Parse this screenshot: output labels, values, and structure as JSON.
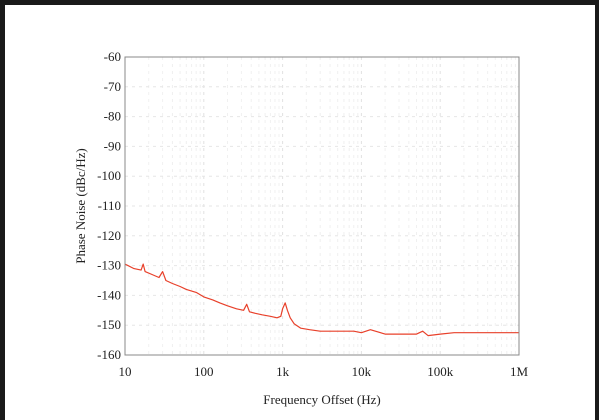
{
  "chart_data": {
    "type": "line",
    "title": "",
    "xlabel": "Frequency Offset (Hz)",
    "ylabel": "Phase Noise (dBc/Hz)",
    "x_scale": "log",
    "xlim": [
      10,
      1000000
    ],
    "ylim": [
      -160,
      -60
    ],
    "x_ticks": [
      {
        "value": 10,
        "label": "10"
      },
      {
        "value": 100,
        "label": "100"
      },
      {
        "value": 1000,
        "label": "1k"
      },
      {
        "value": 10000,
        "label": "10k"
      },
      {
        "value": 100000,
        "label": "100k"
      },
      {
        "value": 1000000,
        "label": "1M"
      }
    ],
    "y_ticks": [
      {
        "value": -60,
        "label": "-60"
      },
      {
        "value": -70,
        "label": "-70"
      },
      {
        "value": -80,
        "label": "-80"
      },
      {
        "value": -90,
        "label": "-90"
      },
      {
        "value": -100,
        "label": "-100"
      },
      {
        "value": -110,
        "label": "-110"
      },
      {
        "value": -120,
        "label": "-120"
      },
      {
        "value": -130,
        "label": "-130"
      },
      {
        "value": -140,
        "label": "-140"
      },
      {
        "value": -150,
        "label": "-150"
      },
      {
        "value": -160,
        "label": "-160"
      }
    ],
    "grid": true,
    "series": [
      {
        "color": "#e8402a",
        "points": [
          [
            10,
            -129.5
          ],
          [
            13,
            -131
          ],
          [
            16,
            -131.5
          ],
          [
            17,
            -129.5
          ],
          [
            18,
            -132
          ],
          [
            22,
            -133
          ],
          [
            27,
            -134
          ],
          [
            30,
            -132
          ],
          [
            33,
            -135
          ],
          [
            40,
            -136
          ],
          [
            50,
            -137
          ],
          [
            60,
            -138
          ],
          [
            80,
            -139
          ],
          [
            100,
            -140.5
          ],
          [
            130,
            -141.5
          ],
          [
            160,
            -142.5
          ],
          [
            200,
            -143.5
          ],
          [
            260,
            -144.5
          ],
          [
            320,
            -145
          ],
          [
            350,
            -143
          ],
          [
            380,
            -145.5
          ],
          [
            450,
            -146
          ],
          [
            550,
            -146.5
          ],
          [
            700,
            -147
          ],
          [
            850,
            -147.5
          ],
          [
            950,
            -147
          ],
          [
            1000,
            -144.5
          ],
          [
            1080,
            -142.5
          ],
          [
            1150,
            -145
          ],
          [
            1250,
            -147.5
          ],
          [
            1400,
            -149.5
          ],
          [
            1700,
            -151
          ],
          [
            2200,
            -151.5
          ],
          [
            3000,
            -152
          ],
          [
            5000,
            -152
          ],
          [
            8000,
            -152
          ],
          [
            10000,
            -152.5
          ],
          [
            13000,
            -151.5
          ],
          [
            20000,
            -153
          ],
          [
            30000,
            -153
          ],
          [
            50000,
            -153
          ],
          [
            60000,
            -152
          ],
          [
            70000,
            -153.5
          ],
          [
            100000,
            -153
          ],
          [
            150000,
            -152.5
          ],
          [
            200000,
            -152.5
          ],
          [
            300000,
            -152.5
          ],
          [
            500000,
            -152.5
          ],
          [
            1000000,
            -152.5
          ]
        ]
      }
    ]
  }
}
